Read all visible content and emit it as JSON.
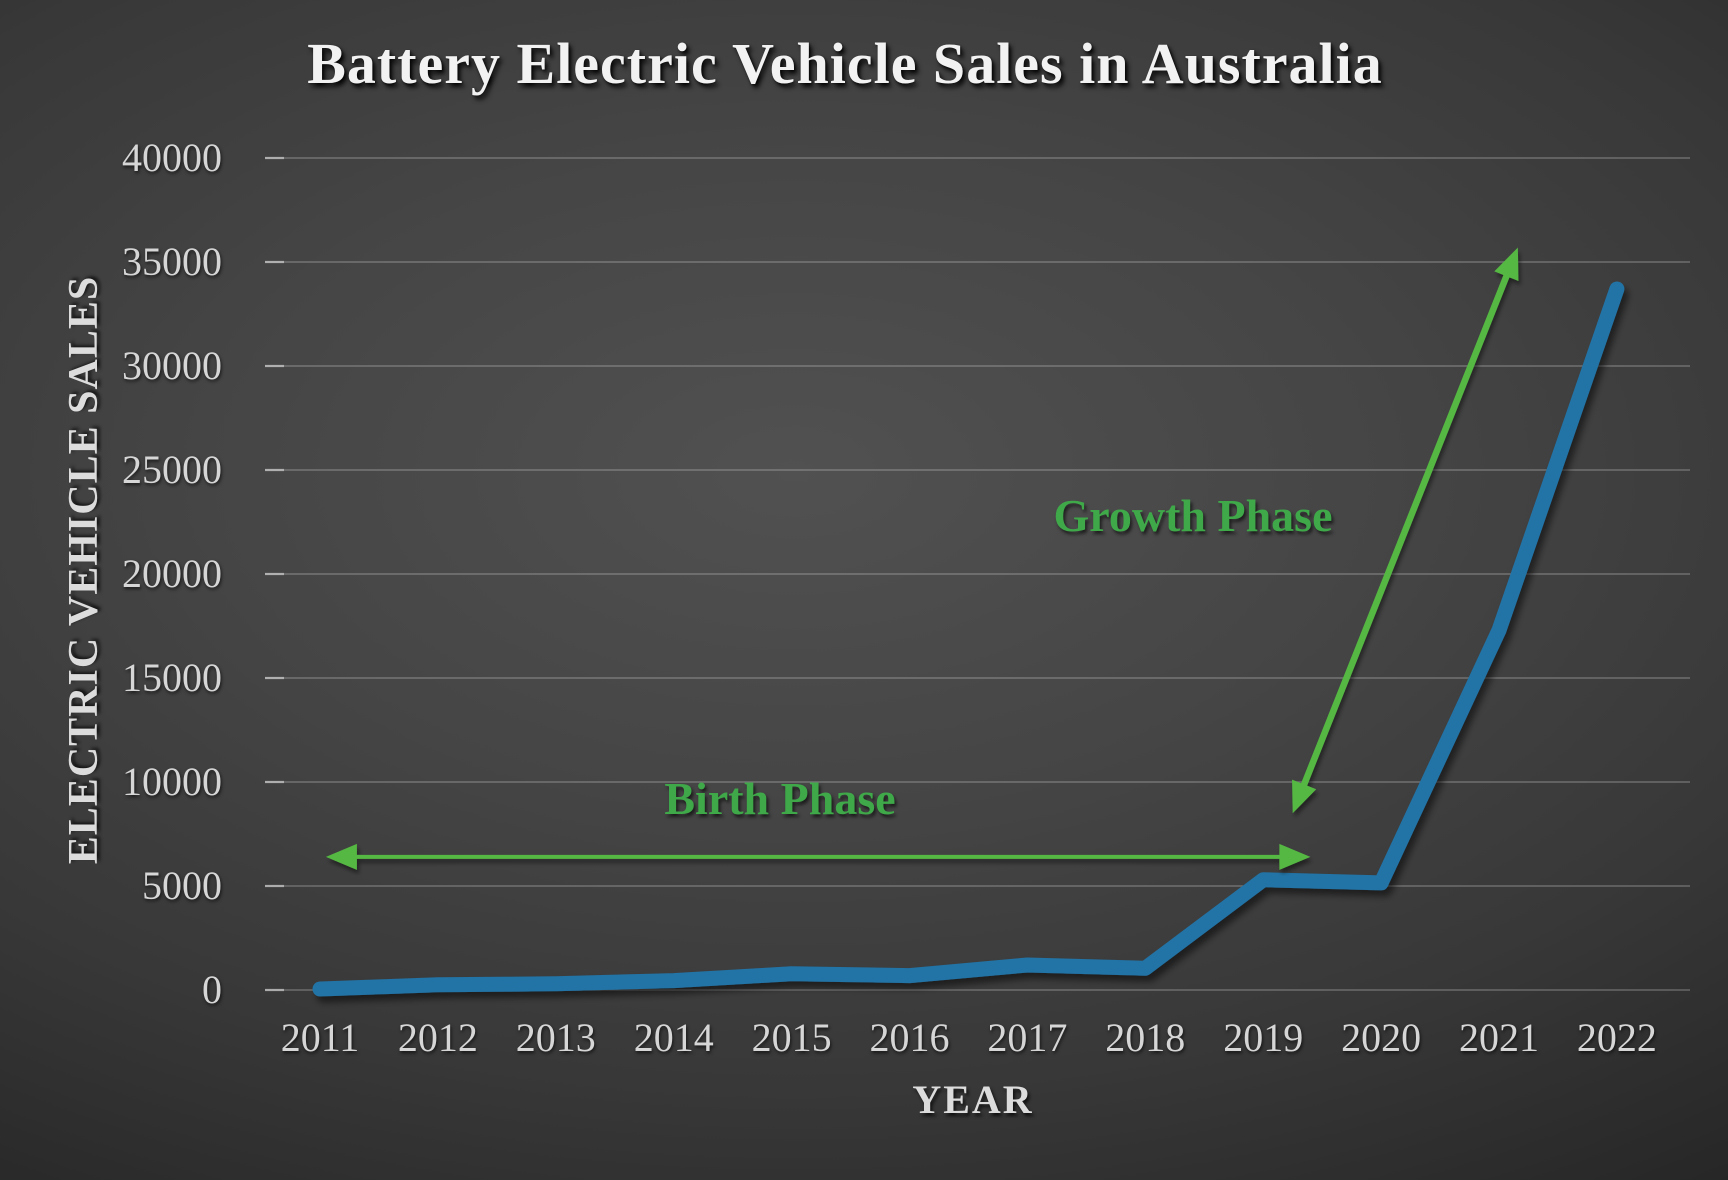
{
  "chart": {
    "title": "Battery Electric Vehicle Sales in Australia",
    "x_axis_title": "YEAR",
    "y_axis_title": "ELECTRIC VEHICLE SALES"
  },
  "chart_data": {
    "type": "line",
    "title": "Battery Electric Vehicle Sales in Australia",
    "xlabel": "YEAR",
    "ylabel": "ELECTRIC VEHICLE SALES",
    "categories": [
      2011,
      2012,
      2013,
      2014,
      2015,
      2016,
      2017,
      2018,
      2019,
      2020,
      2021,
      2022
    ],
    "series": [
      {
        "name": "Battery Electric Vehicle Sales",
        "values": [
          50,
          250,
          300,
          450,
          780,
          690,
          1200,
          1050,
          5300,
          5150,
          17300,
          33700
        ],
        "color": "#2273a6"
      }
    ],
    "ylim": [
      0,
      40000
    ],
    "ytick_interval": 5000,
    "grid": "horizontal",
    "legend": "none",
    "annotations": [
      {
        "id": "birth-phase",
        "label": "Birth Phase",
        "type": "double-arrow",
        "from": {
          "x": 2011.05,
          "y": 6400
        },
        "to": {
          "x": 2019.4,
          "y": 6400
        },
        "shaft_width": 4,
        "color": "#55b843",
        "label_color": "#3fa94a"
      },
      {
        "id": "growth-phase",
        "label": "Growth Phase",
        "type": "double-arrow",
        "from": {
          "x": 2019.25,
          "y": 8500
        },
        "to": {
          "x": 2021.16,
          "y": 35700
        },
        "shaft_width": 6.5,
        "color": "#55b843",
        "label_color": "#3fa94a"
      }
    ],
    "theme": {
      "background_dark": "#2a2a2a",
      "gridline_color": "#d8d8d8",
      "tick_label_color": "#d6d6d6",
      "title_color": "#f2f2f2"
    }
  }
}
